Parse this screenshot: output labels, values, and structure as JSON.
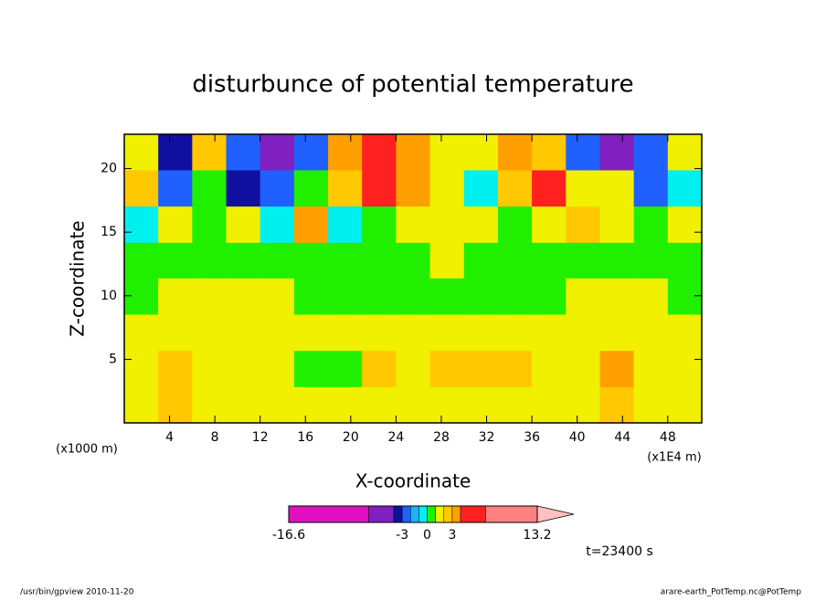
{
  "chart_data": {
    "type": "contour",
    "title": "disturbunce of potential temperature",
    "xlabel": "X-coordinate",
    "ylabel": "Z-coordinate",
    "x_unit": "(x1E4 m)",
    "y_unit": "(x1000 m)",
    "annotation": "t=23400 s",
    "footer_left": "/usr/bin/gpview  2010-11-20",
    "footer_right": "arare-earth_PotTemp.nc@PotTemp",
    "xlim": [
      0,
      51
    ],
    "ylim": [
      0,
      22.7
    ],
    "xticks": [
      4,
      8,
      12,
      16,
      20,
      24,
      28,
      32,
      36,
      40,
      44,
      48
    ],
    "yticks": [
      5,
      10,
      15,
      20
    ],
    "x": [
      1.5,
      4.5,
      7.5,
      10.5,
      13.5,
      16.5,
      19.5,
      22.5,
      25.5,
      28.5,
      31.5,
      34.5,
      37.5,
      40.5,
      43.5,
      46.5,
      49.5
    ],
    "y": [
      1.4,
      4.3,
      7.1,
      10,
      12.8,
      15.6,
      18.5,
      21.3
    ],
    "z": [
      [
        1.5,
        2.5,
        1.5,
        1.5,
        1.5,
        1.5,
        1.5,
        1.5,
        1.5,
        1.5,
        1.5,
        1.5,
        1.5,
        1.5,
        2.5,
        1.5,
        1.5
      ],
      [
        1.5,
        2.5,
        1.5,
        1.5,
        1.5,
        0.5,
        0.5,
        2.5,
        1.5,
        2.5,
        2.5,
        2.5,
        1.5,
        1.5,
        3.5,
        1.5,
        1.5
      ],
      [
        1.5,
        1.5,
        1.5,
        1.5,
        1.5,
        1.5,
        1.5,
        1.5,
        1.5,
        1.5,
        1.5,
        1.5,
        1.5,
        1.5,
        1.5,
        1.5,
        1.5
      ],
      [
        0.5,
        1.5,
        1.5,
        1.5,
        1.5,
        0.5,
        0.5,
        0.5,
        0.5,
        0.5,
        0.5,
        0.5,
        0.5,
        1.5,
        1.5,
        1.5,
        0.5
      ],
      [
        0.5,
        0.5,
        0.5,
        0.5,
        0.5,
        0.5,
        0.5,
        0.5,
        0.5,
        1.5,
        0.5,
        0.5,
        0.5,
        0.5,
        0.5,
        0.5,
        0.5
      ],
      [
        -0.5,
        1.5,
        0.5,
        1.5,
        -0.5,
        3.5,
        -0.5,
        0.5,
        1.5,
        1.5,
        1.5,
        0.5,
        1.5,
        2.5,
        1.5,
        0.5,
        1.5
      ],
      [
        2.5,
        -2.5,
        0.5,
        -3.5,
        -2.5,
        0.5,
        2.5,
        5,
        3.5,
        1.5,
        -0.5,
        2.5,
        5,
        1.5,
        1.5,
        -2.5,
        -0.5
      ],
      [
        1.5,
        -3.5,
        2.5,
        -2.5,
        -5,
        -2.5,
        3.5,
        5,
        3.5,
        1.5,
        1.5,
        3.5,
        2.5,
        -2.5,
        -5,
        -2.5,
        1.5
      ]
    ],
    "colorbar": {
      "levels": [
        -16.6,
        -7,
        -4,
        -3,
        -2,
        -1,
        0,
        1,
        2,
        3,
        4,
        7,
        13.2
      ],
      "colors": [
        "#e010c0",
        "#8020c0",
        "#1010a0",
        "#2060ff",
        "#20b0ff",
        "#00f0f0",
        "#20f000",
        "#f0f000",
        "#ffc800",
        "#ffa000",
        "#ff2020",
        "#ff8080"
      ],
      "extend_color": "#ffc0c0",
      "ticks": [
        -16.6,
        -3,
        0,
        3,
        13.2
      ]
    }
  }
}
